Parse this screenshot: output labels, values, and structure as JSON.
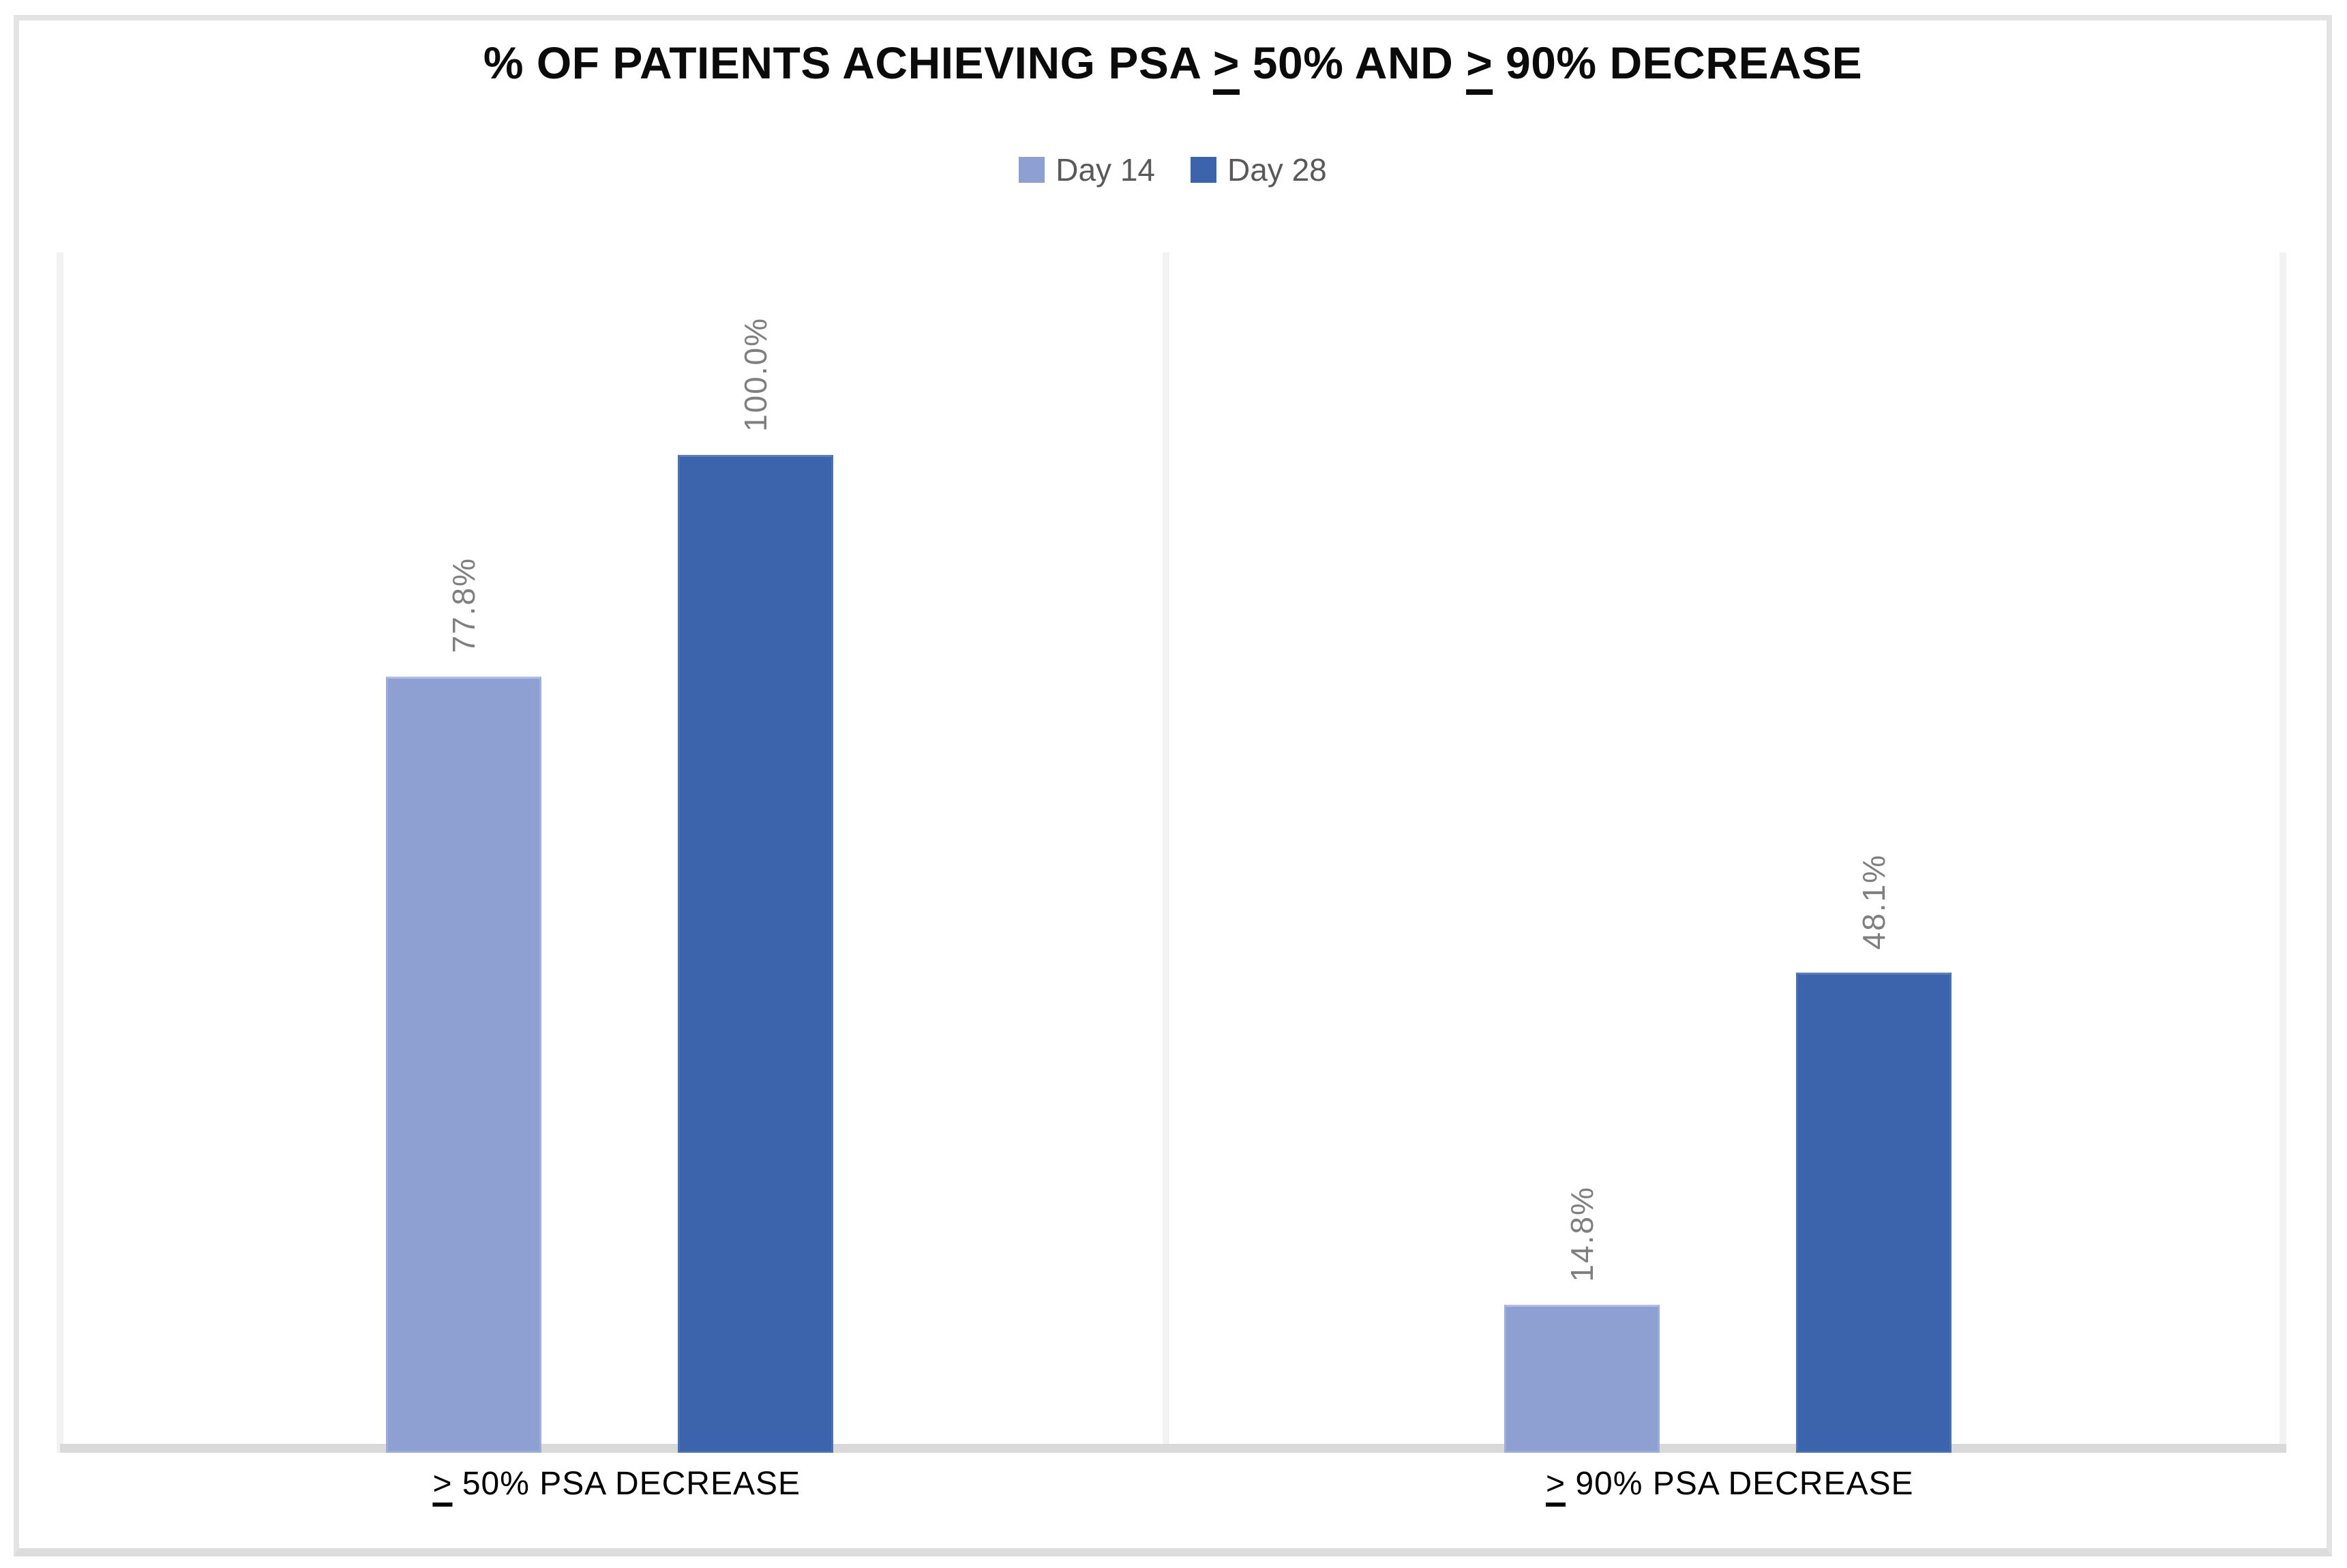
{
  "title": {
    "full": "% OF PATIENTS ACHIEVING PSA ≥ 50% AND ≥ 90% DECREASE",
    "parts": [
      {
        "text": "% OF PATIENTS ACHIEVING PSA "
      },
      {
        "geq": ">"
      },
      {
        "text": " 50% AND "
      },
      {
        "geq": ">"
      },
      {
        "text": " 90% DECREASE"
      }
    ]
  },
  "chart_data": {
    "type": "bar",
    "title": "% OF PATIENTS ACHIEVING PSA ≥ 50% AND ≥ 90% DECREASE",
    "categories": [
      "≥ 50% PSA DECREASE",
      "≥ 90% PSA DECREASE"
    ],
    "category_parts": [
      {
        "geq": ">",
        "text": " 50% PSA DECREASE"
      },
      {
        "geq": ">",
        "text": " 90% PSA DECREASE"
      }
    ],
    "series": [
      {
        "name": "Day 14",
        "color": "#8E9FD2",
        "values": [
          77.8,
          14.8
        ],
        "labels": [
          "77.8%",
          "14.8%"
        ]
      },
      {
        "name": "Day 28",
        "color": "#3B64AC",
        "values": [
          100.0,
          48.1
        ],
        "labels": [
          "100.0%",
          "48.1%"
        ]
      }
    ],
    "ylabel": "",
    "xlabel": "",
    "ylim": [
      0,
      120
    ],
    "y_axis_visible": false,
    "grid": false,
    "legend_position": "top",
    "data_label_color": "#7F7F7F",
    "data_label_rotation": -90,
    "axis_line_color": "#D9D9D9",
    "plot_border_color": "#F2F2F2",
    "frame_border_color": "#E3E3E3"
  }
}
